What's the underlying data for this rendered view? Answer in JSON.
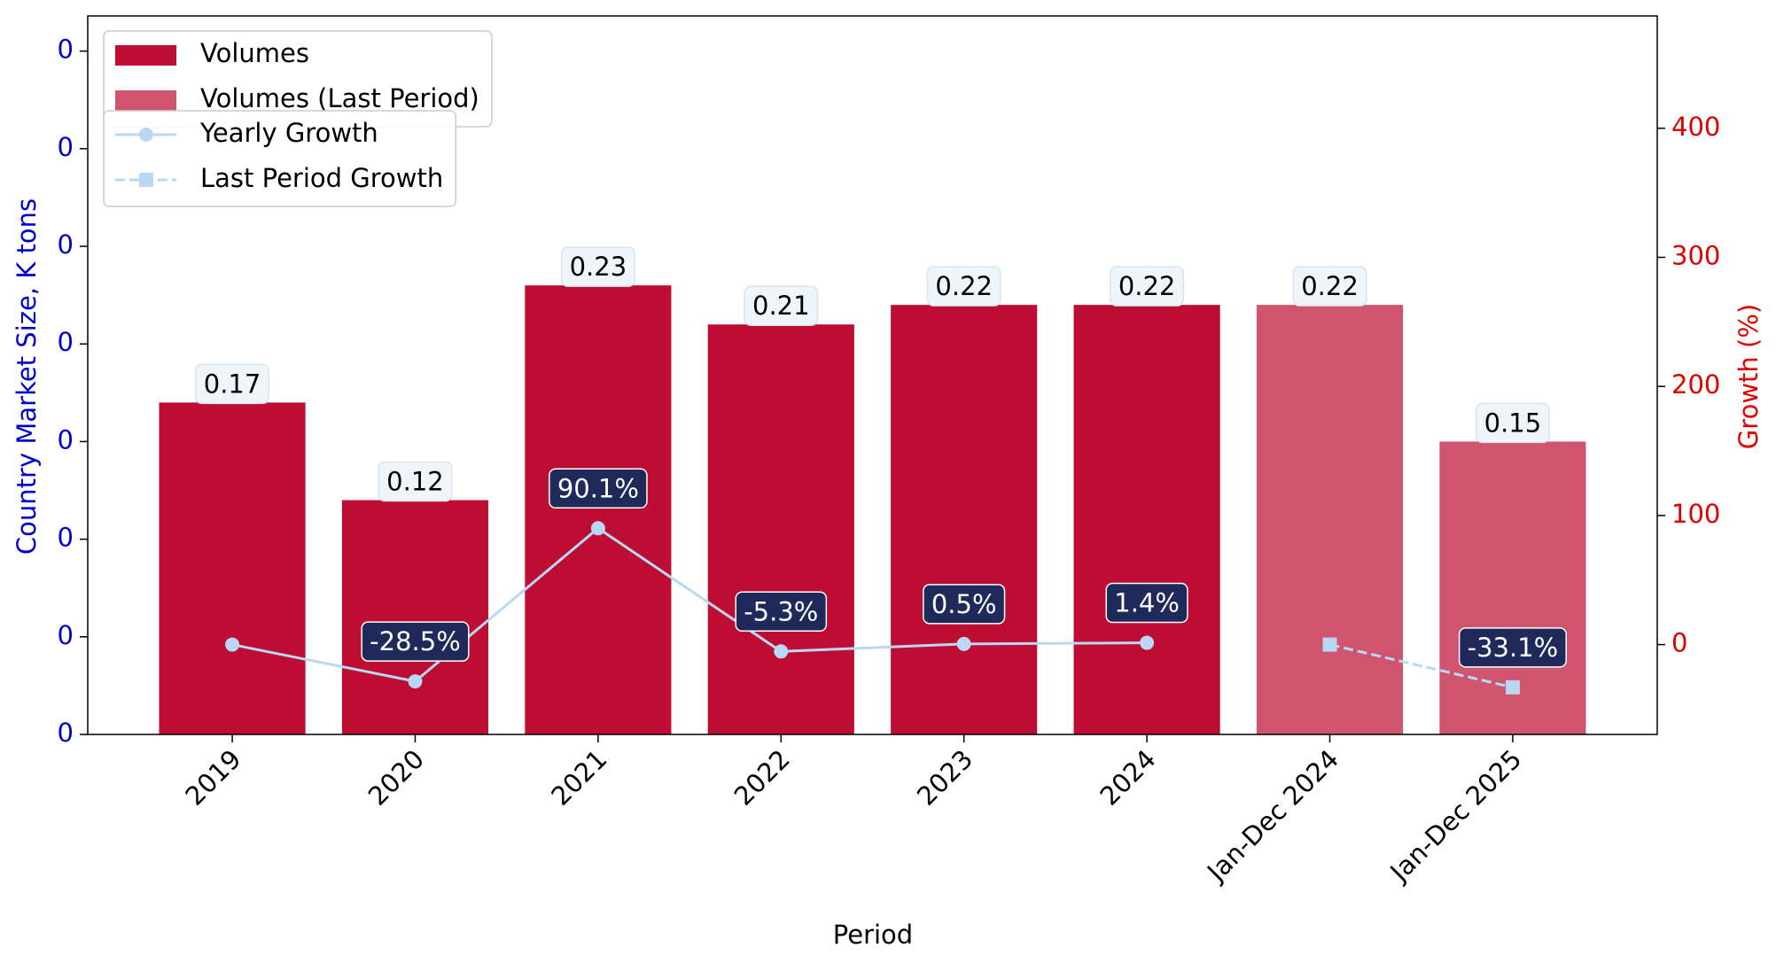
{
  "chart_data": {
    "type": "bar",
    "x_label": "Period",
    "y_label": "Country Market Size, K tons",
    "y2_label": "Growth (%)",
    "categories": [
      "2019",
      "2020",
      "2021",
      "2022",
      "2023",
      "2024",
      "Jan-Dec 2024",
      "Jan-Dec 2025"
    ],
    "ylim": [
      0,
      0.368
    ],
    "yticks": [
      0,
      {
        "value": 0.05,
        "label": "0"
      },
      {
        "value": 0.1,
        "label": "0"
      },
      {
        "value": 0.15,
        "label": "0"
      },
      {
        "value": 0.2,
        "label": "0"
      },
      {
        "value": 0.25,
        "label": "0"
      },
      {
        "value": 0.3,
        "label": "0"
      },
      {
        "value": 0.35,
        "label": "0"
      }
    ],
    "y2lim": [
      -69.6,
      487
    ],
    "y2ticks": [
      0,
      100,
      200,
      300,
      400
    ],
    "y_color": "#0000cc",
    "y2_color": "#e00000",
    "series": [
      {
        "name": "Volumes",
        "type": "bar",
        "color": "#bd0d32",
        "values": [
          0.17,
          0.12,
          0.23,
          0.21,
          0.22,
          0.22,
          null,
          null
        ]
      },
      {
        "name": "Volumes (Last Period)",
        "type": "bar",
        "color": "#d0546e",
        "values": [
          null,
          null,
          null,
          null,
          null,
          null,
          0.22,
          0.15
        ]
      },
      {
        "name": "Yearly Growth",
        "type": "line",
        "axis": "y2",
        "color": "#b8d8f5",
        "linestyle": "solid",
        "marker": "circle",
        "values": [
          0,
          -28.5,
          90.1,
          -5.3,
          0.5,
          1.4,
          null,
          null
        ],
        "value_labels": [
          null,
          "-28.5%",
          "90.1%",
          "-5.3%",
          "0.5%",
          "1.4%",
          null,
          null
        ]
      },
      {
        "name": "Last Period Growth",
        "type": "line",
        "axis": "y2",
        "color": "#b8d8f5",
        "linestyle": "dashed",
        "marker": "square",
        "values": [
          null,
          null,
          null,
          null,
          null,
          null,
          0,
          -33.1
        ],
        "value_labels": [
          null,
          null,
          null,
          null,
          null,
          null,
          null,
          "-33.1%"
        ]
      }
    ]
  }
}
